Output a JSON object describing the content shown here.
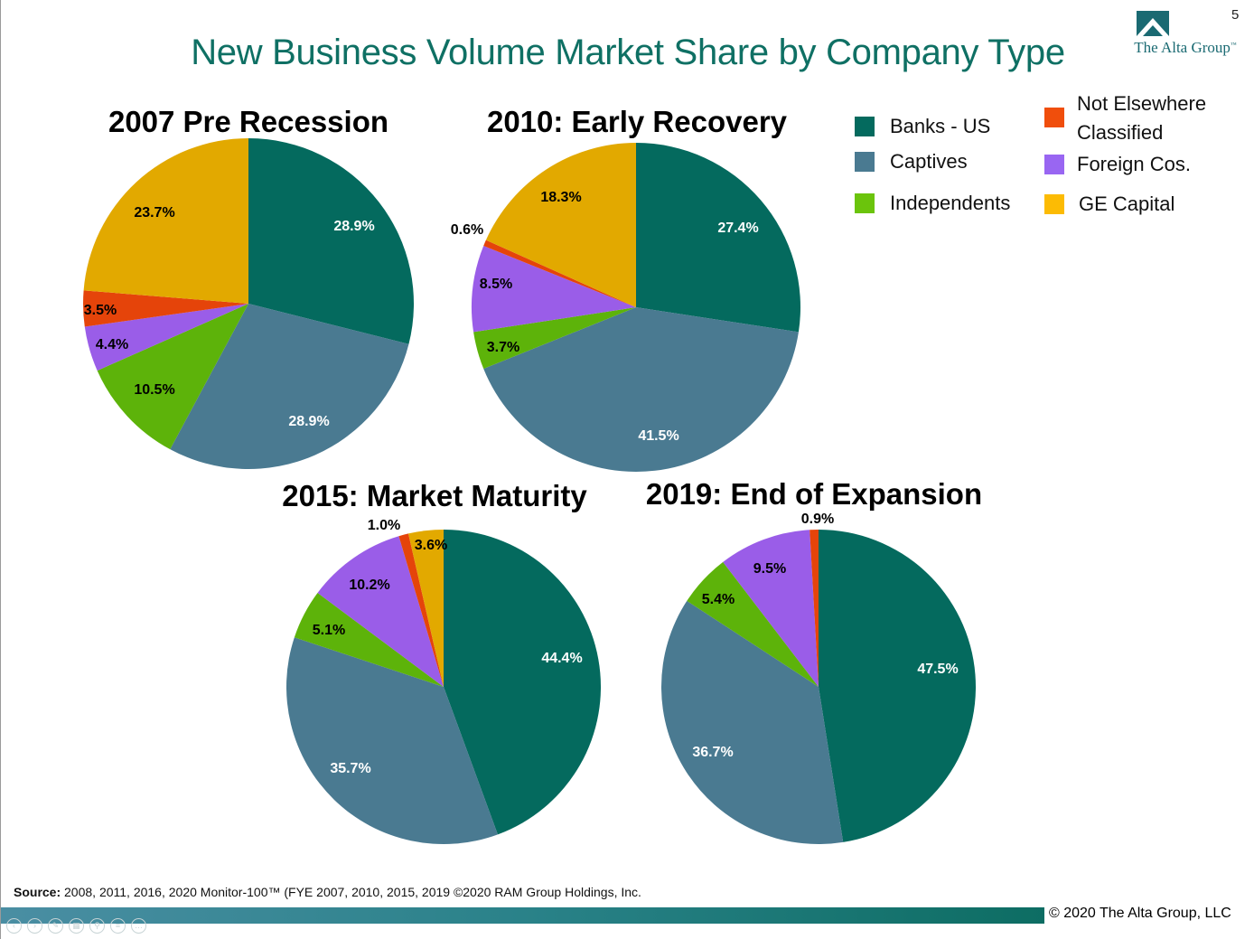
{
  "page_number": "5",
  "title": "New Business Volume Market Share by Company Type",
  "logo_text": "The Alta Group",
  "logo_tm": "™",
  "legend": [
    {
      "label": "Banks - US",
      "color": "#046a5e"
    },
    {
      "label": "Captives",
      "color": "#4a7a91"
    },
    {
      "label": "Independents",
      "color": "#6bc40c"
    },
    {
      "label": "Not Elsewhere Classified",
      "color": "#f04e0c"
    },
    {
      "label": "Foreign Cos.",
      "color": "#9966f2"
    },
    {
      "label": "GE Capital",
      "color": "#fcbb04"
    }
  ],
  "chart_data": [
    {
      "type": "pie",
      "title": "2007 Pre Recession",
      "labels": [
        "Banks - US",
        "Captives",
        "Independents",
        "Foreign Cos.",
        "Not Elsewhere Classified",
        "GE Capital"
      ],
      "values": [
        28.9,
        28.9,
        10.5,
        4.4,
        3.5,
        23.7
      ],
      "data_labels": [
        "28.9%",
        "28.9%",
        "10.5%",
        "4.4%",
        "3.5%",
        "23.7%"
      ],
      "colors": [
        "#046a5e",
        "#4a7a91",
        "#5db30a",
        "#9a5de8",
        "#e5440a",
        "#e2a900"
      ]
    },
    {
      "type": "pie",
      "title": "2010: Early Recovery",
      "labels": [
        "Banks - US",
        "Captives",
        "Independents",
        "Foreign Cos.",
        "Not Elsewhere Classified",
        "GE Capital"
      ],
      "values": [
        27.4,
        41.5,
        3.7,
        8.5,
        0.6,
        18.3
      ],
      "data_labels": [
        "27.4%",
        "41.5%",
        "3.7%",
        "8.5%",
        "0.6%",
        "18.3%"
      ],
      "colors": [
        "#046a5e",
        "#4a7a91",
        "#5db30a",
        "#9a5de8",
        "#e5440a",
        "#e2a900"
      ]
    },
    {
      "type": "pie",
      "title": "2015: Market Maturity",
      "labels": [
        "Banks - US",
        "Captives",
        "Independents",
        "Foreign Cos.",
        "Not Elsewhere Classified",
        "GE Capital"
      ],
      "values": [
        44.4,
        35.7,
        5.1,
        10.2,
        1.0,
        3.6
      ],
      "data_labels": [
        "44.4%",
        "35.7%",
        "5.1%",
        "10.2%",
        "1.0%",
        "3.6%"
      ],
      "colors": [
        "#046a5e",
        "#4a7a91",
        "#5db30a",
        "#9a5de8",
        "#e5440a",
        "#e2a900"
      ]
    },
    {
      "type": "pie",
      "title": "2019: End of Expansion",
      "labels": [
        "Banks - US",
        "Captives",
        "Independents",
        "Foreign Cos.",
        "Not Elsewhere Classified"
      ],
      "values": [
        47.5,
        36.7,
        5.4,
        9.5,
        0.9
      ],
      "data_labels": [
        "47.5%",
        "36.7%",
        "5.4%",
        "9.5%",
        "0.9%"
      ],
      "colors": [
        "#046a5e",
        "#4a7a91",
        "#5db30a",
        "#9a5de8",
        "#e5440a"
      ]
    }
  ],
  "source_label": "Source:",
  "source_text": " 2008, 2011, 2016, 2020 Monitor-100™ (FYE 2007, 2010, 2015, 2019 ©2020 RAM Group Holdings, Inc.",
  "copyright": "© 2020 The Alta Group, LLC",
  "nav_icons": [
    "back-icon",
    "forward-icon",
    "pen-icon",
    "slides-icon",
    "zoom-icon",
    "menu-icon",
    "more-icon"
  ]
}
